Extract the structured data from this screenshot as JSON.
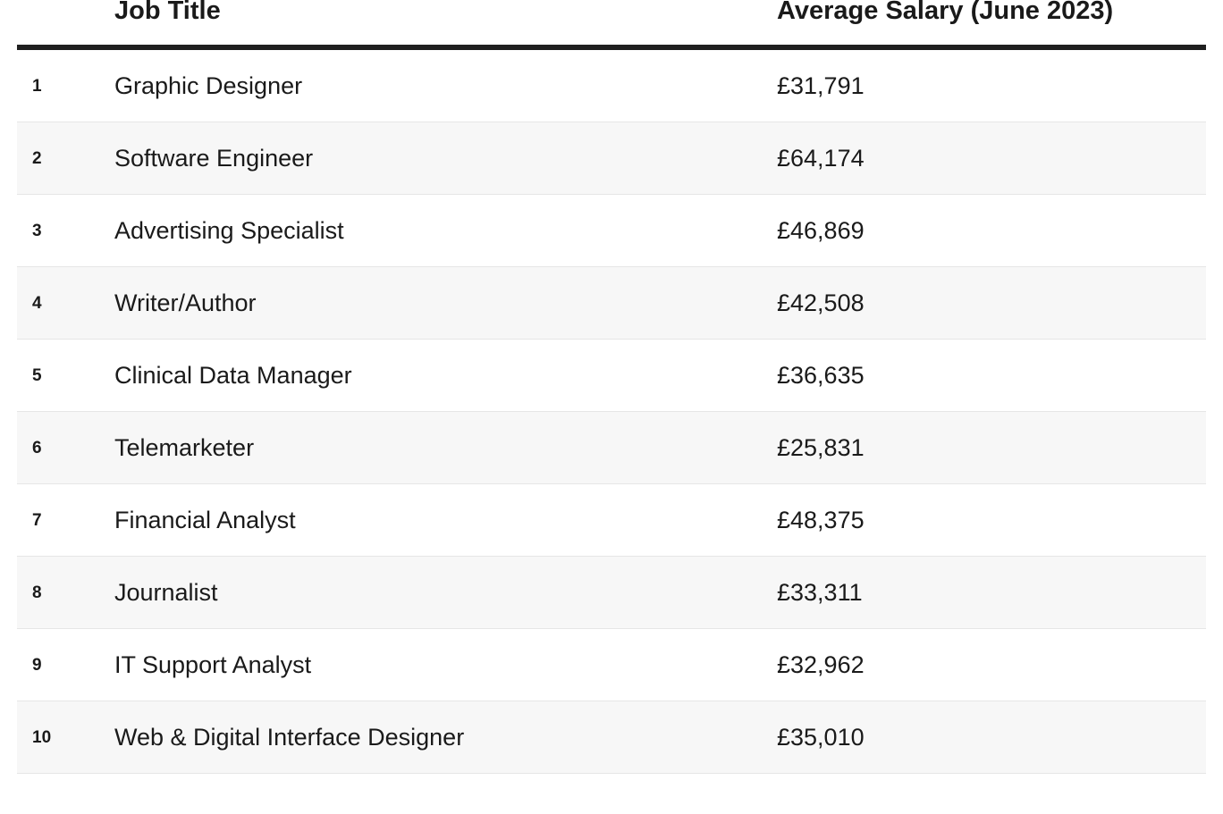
{
  "table": {
    "headers": {
      "rank": "",
      "job_title": "Job Title",
      "salary": "Average Salary (June 2023)"
    },
    "rows": [
      {
        "rank": "1",
        "job_title": "Graphic Designer",
        "salary": "£31,791"
      },
      {
        "rank": "2",
        "job_title": "Software Engineer",
        "salary": "£64,174"
      },
      {
        "rank": "3",
        "job_title": "Advertising Specialist",
        "salary": "£46,869"
      },
      {
        "rank": "4",
        "job_title": "Writer/Author",
        "salary": "£42,508"
      },
      {
        "rank": "5",
        "job_title": "Clinical Data Manager",
        "salary": "£36,635"
      },
      {
        "rank": "6",
        "job_title": "Telemarketer",
        "salary": "£25,831"
      },
      {
        "rank": "7",
        "job_title": "Financial Analyst",
        "salary": "£48,375"
      },
      {
        "rank": "8",
        "job_title": "Journalist",
        "salary": "£33,311"
      },
      {
        "rank": "9",
        "job_title": "IT Support Analyst",
        "salary": "£32,962"
      },
      {
        "rank": "10",
        "job_title": "Web & Digital Interface Designer",
        "salary": "£35,010"
      }
    ]
  },
  "colors": {
    "header_rule": "#1f1f1f",
    "striped_row": "#f7f7f7",
    "row_divider": "#e6e6e6",
    "text": "#1a1a1a"
  }
}
